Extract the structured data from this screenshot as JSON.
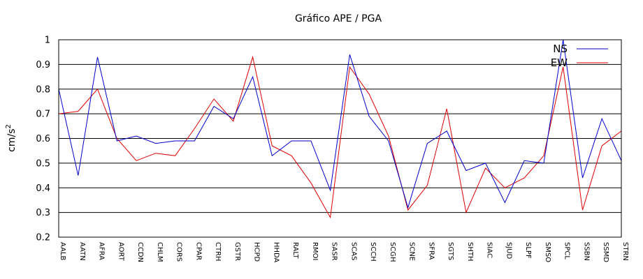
{
  "chart_data": {
    "type": "line",
    "title": "Gráfico  APE / PGA",
    "xlabel": "",
    "ylabel": "cm/s",
    "ylabel_sup": "2",
    "ylim": [
      0.2,
      1.0
    ],
    "yticks": [
      0.2,
      0.3,
      0.4,
      0.5,
      0.6,
      0.7,
      0.8,
      0.9,
      1.0
    ],
    "ytick_labels": [
      "0.2",
      "0.3",
      "0.4",
      "0.5",
      "0.6",
      "0.7",
      "0.8",
      "0.9",
      "1"
    ],
    "grid": "horizontal",
    "legend_position": "top-right",
    "categories": [
      "AALB",
      "AATN",
      "AFRA",
      "AORT",
      "CCDN",
      "CHLM",
      "CORS",
      "CPAR",
      "CTRH",
      "GSTR",
      "HCPD",
      "HHDA",
      "RALT",
      "RMOI",
      "SASR",
      "SCAS",
      "SCCH",
      "SCGH",
      "SCNE",
      "SFRA",
      "SGTS",
      "SHTH",
      "SIAC",
      "SJUD",
      "SLPF",
      "SMSO",
      "SPCL",
      "SSBN",
      "SSMD",
      "STRN"
    ],
    "series": [
      {
        "name": "NS",
        "color": "#0000cc",
        "values": [
          0.8,
          0.45,
          0.93,
          0.59,
          0.61,
          0.58,
          0.59,
          0.59,
          0.73,
          0.68,
          0.85,
          0.53,
          0.59,
          0.59,
          0.39,
          0.94,
          0.69,
          0.59,
          0.32,
          0.58,
          0.63,
          0.47,
          0.5,
          0.34,
          0.51,
          0.5,
          1.0,
          0.44,
          0.68,
          0.51
        ]
      },
      {
        "name": "EW",
        "color": "#dd0000",
        "values": [
          0.7,
          0.71,
          0.8,
          0.6,
          0.51,
          0.54,
          0.53,
          0.64,
          0.76,
          0.67,
          0.93,
          0.57,
          0.53,
          0.42,
          0.28,
          0.89,
          0.78,
          0.61,
          0.31,
          0.41,
          0.72,
          0.3,
          0.48,
          0.4,
          0.44,
          0.53,
          0.89,
          0.31,
          0.57,
          0.63
        ]
      }
    ]
  }
}
